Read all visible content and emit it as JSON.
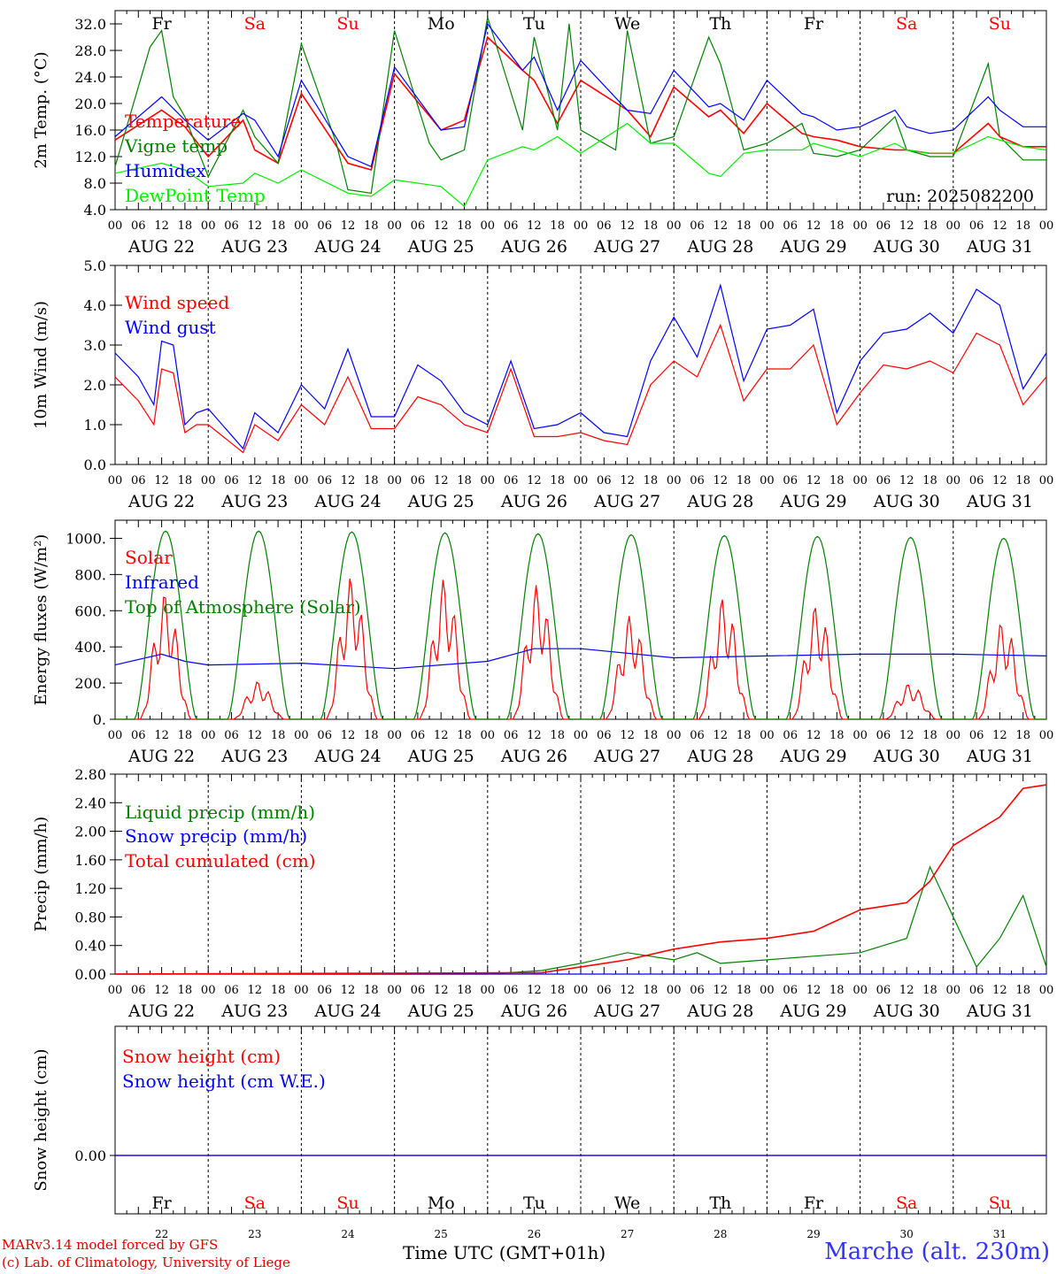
{
  "chart_data": [
    {
      "type": "line",
      "ylabel": "2m Temp. (°C)",
      "ylim": [
        4,
        34
      ],
      "yticks": [
        "32.0",
        "28.0",
        "24.0",
        "20.0",
        "16.0",
        "12.0",
        "8.0",
        "4.0"
      ],
      "ytick_values": [
        32,
        28,
        24,
        20,
        16,
        12,
        8,
        4
      ],
      "run_label": "run: 2025082200",
      "series": [
        {
          "name": "Temperature",
          "color": "#ff0000",
          "x": [
            0,
            12,
            18,
            24,
            33,
            36,
            42,
            48,
            60,
            66,
            72,
            84,
            90,
            96,
            105,
            108,
            114,
            120,
            132,
            138,
            144,
            153,
            156,
            162,
            168,
            177,
            180,
            186,
            192,
            201,
            204,
            210,
            216,
            225,
            228,
            234,
            240
          ],
          "values": [
            14.5,
            19,
            16.5,
            12,
            17.5,
            13,
            11,
            21.5,
            11,
            10,
            24.5,
            16,
            17.5,
            30,
            25,
            23.5,
            17,
            23.5,
            19,
            15,
            22.5,
            18,
            19,
            15.5,
            20,
            15.5,
            15,
            14.5,
            13.5,
            13,
            13,
            12.5,
            12.5,
            17,
            15,
            13.5,
            13.5
          ]
        },
        {
          "name": "Vigne temp",
          "color": "#008000",
          "x": [
            0,
            9,
            12,
            15,
            18,
            21,
            24,
            33,
            36,
            42,
            48,
            57,
            60,
            66,
            72,
            81,
            84,
            90,
            96,
            105,
            108,
            114,
            117,
            120,
            129,
            132,
            138,
            144,
            153,
            156,
            162,
            168,
            177,
            180,
            186,
            192,
            201,
            204,
            210,
            216,
            225,
            228,
            234,
            240
          ],
          "values": [
            10.5,
            28.5,
            31,
            21,
            18,
            13.5,
            9,
            19,
            15,
            11,
            29,
            14,
            7,
            6.5,
            31,
            14,
            11.5,
            13,
            33,
            16,
            30,
            16,
            32,
            16,
            13,
            31,
            14,
            15,
            30,
            26,
            13,
            14,
            17,
            12.5,
            12,
            13,
            18,
            13,
            12,
            12,
            26,
            15,
            11.5,
            11.5
          ]
        },
        {
          "name": "Humidex",
          "color": "#0000ff",
          "x": [
            0,
            12,
            18,
            24,
            33,
            36,
            42,
            48,
            60,
            66,
            72,
            84,
            90,
            96,
            105,
            108,
            114,
            120,
            132,
            138,
            144,
            153,
            156,
            162,
            168,
            177,
            180,
            186,
            192,
            201,
            204,
            210,
            216,
            225,
            228,
            234,
            240
          ],
          "values": [
            15,
            21,
            17.5,
            14.5,
            18.5,
            17.5,
            12,
            23.5,
            12,
            10.5,
            25.5,
            16,
            16.5,
            32,
            25,
            27,
            19,
            26.5,
            19,
            18.5,
            25,
            19.5,
            20,
            17.5,
            23.5,
            18.5,
            18,
            16,
            16.5,
            19,
            16.5,
            15.5,
            16,
            21,
            19,
            16.5,
            16.5
          ]
        },
        {
          "name": "DewPoint Temp",
          "color": "#00ee00",
          "x": [
            0,
            12,
            18,
            24,
            33,
            36,
            42,
            48,
            60,
            66,
            72,
            84,
            90,
            96,
            105,
            108,
            114,
            120,
            132,
            138,
            144,
            153,
            156,
            162,
            168,
            177,
            180,
            186,
            192,
            201,
            204,
            210,
            216,
            225,
            228,
            234,
            240
          ],
          "values": [
            9.5,
            11,
            10,
            7.5,
            8,
            9.5,
            8,
            10,
            6.5,
            6,
            8.5,
            7.5,
            4.5,
            11.5,
            13.5,
            13,
            15,
            12.5,
            17,
            14,
            14,
            9.5,
            9,
            12.5,
            13,
            13,
            14,
            13,
            12,
            14,
            13,
            12.5,
            12.5,
            15,
            14.5,
            13.5,
            13
          ]
        }
      ]
    },
    {
      "type": "line",
      "ylabel": "10m Wind (m/s)",
      "ylim": [
        0,
        5
      ],
      "yticks": [
        "5.0",
        "4.0",
        "3.0",
        "2.0",
        "1.0",
        "0.0"
      ],
      "ytick_values": [
        5,
        4,
        3,
        2,
        1,
        0
      ],
      "series": [
        {
          "name": "Wind speed",
          "color": "#ff0000",
          "x": [
            0,
            6,
            10,
            12,
            15,
            18,
            21,
            24,
            33,
            36,
            42,
            48,
            54,
            60,
            66,
            72,
            78,
            84,
            90,
            96,
            102,
            108,
            114,
            120,
            126,
            132,
            138,
            144,
            150,
            156,
            162,
            168,
            174,
            180,
            186,
            192,
            198,
            204,
            210,
            216,
            222,
            228,
            234,
            240
          ],
          "values": [
            2.2,
            1.6,
            1.0,
            2.4,
            2.3,
            0.8,
            1.0,
            1.0,
            0.3,
            1.0,
            0.6,
            1.5,
            1.0,
            2.2,
            0.9,
            0.9,
            1.7,
            1.5,
            1.0,
            0.8,
            2.4,
            0.7,
            0.7,
            0.8,
            0.6,
            0.5,
            2.0,
            2.6,
            2.2,
            3.5,
            1.6,
            2.4,
            2.4,
            3.0,
            1.0,
            1.8,
            2.5,
            2.4,
            2.6,
            2.3,
            3.3,
            3.0,
            1.5,
            2.2
          ]
        },
        {
          "name": "Wind gust",
          "color": "#0000ff",
          "x": [
            0,
            6,
            10,
            12,
            15,
            18,
            21,
            24,
            33,
            36,
            42,
            48,
            54,
            60,
            66,
            72,
            78,
            84,
            90,
            96,
            102,
            108,
            114,
            120,
            126,
            132,
            138,
            144,
            150,
            156,
            162,
            168,
            174,
            180,
            186,
            192,
            198,
            204,
            210,
            216,
            222,
            228,
            234,
            240
          ],
          "values": [
            2.8,
            2.2,
            1.5,
            3.1,
            3.0,
            1.0,
            1.3,
            1.4,
            0.4,
            1.3,
            0.8,
            2.0,
            1.4,
            2.9,
            1.2,
            1.2,
            2.5,
            2.1,
            1.3,
            1.0,
            2.6,
            0.9,
            1.0,
            1.3,
            0.8,
            0.7,
            2.6,
            3.7,
            2.7,
            4.5,
            2.1,
            3.4,
            3.5,
            3.9,
            1.3,
            2.6,
            3.3,
            3.4,
            3.8,
            3.3,
            4.4,
            4.0,
            1.9,
            2.8
          ]
        }
      ]
    },
    {
      "type": "line",
      "ylabel": "Energy fluxes (W/m²)",
      "ylim": [
        0,
        1100
      ],
      "yticks": [
        "1000.",
        "800.",
        "600.",
        "400.",
        "200.",
        "0."
      ],
      "ytick_values": [
        1000,
        800,
        600,
        400,
        200,
        0
      ],
      "series": [
        {
          "name": "Solar",
          "color": "#ff0000",
          "daily_peaks": [
            700,
            210,
            790,
            780,
            750,
            580,
            680,
            640,
            200,
            550
          ]
        },
        {
          "name": "Infrared",
          "color": "#0000ff",
          "x": [
            0,
            12,
            18,
            24,
            48,
            72,
            96,
            108,
            120,
            144,
            168,
            192,
            216,
            240
          ],
          "values": [
            300,
            360,
            320,
            300,
            310,
            280,
            320,
            390,
            390,
            340,
            350,
            360,
            360,
            350
          ]
        },
        {
          "name": "Top of Atmosphere (Solar)",
          "color": "#008000",
          "daily_peaks": [
            1040,
            1040,
            1035,
            1030,
            1025,
            1020,
            1015,
            1010,
            1005,
            1000
          ]
        }
      ]
    },
    {
      "type": "line",
      "ylabel": "Precip (mm/h)",
      "ylim": [
        0,
        2.8
      ],
      "yticks": [
        "2.80",
        "2.40",
        "2.00",
        "1.60",
        "1.20",
        "0.80",
        "0.40",
        "0.00"
      ],
      "ytick_values": [
        2.8,
        2.4,
        2.0,
        1.6,
        1.2,
        0.8,
        0.4,
        0.0
      ],
      "series": [
        {
          "name": "Liquid precip (mm/h)",
          "color": "#008000",
          "x": [
            0,
            96,
            110,
            120,
            132,
            144,
            150,
            156,
            168,
            180,
            192,
            204,
            210,
            216,
            222,
            228,
            234,
            240
          ],
          "values": [
            0,
            0,
            0.05,
            0.15,
            0.3,
            0.2,
            0.3,
            0.15,
            0.2,
            0.25,
            0.3,
            0.5,
            1.5,
            0.8,
            0.1,
            0.5,
            1.1,
            0.1
          ]
        },
        {
          "name": "Snow precip (mm/h)",
          "color": "#0000ff",
          "x": [
            0,
            240
          ],
          "values": [
            0,
            0
          ]
        },
        {
          "name": "Total cumulated (cm)",
          "color": "#ff0000",
          "x": [
            0,
            110,
            120,
            132,
            144,
            156,
            168,
            180,
            192,
            204,
            210,
            216,
            228,
            234,
            240
          ],
          "values": [
            0,
            0.02,
            0.1,
            0.2,
            0.35,
            0.45,
            0.5,
            0.6,
            0.9,
            1.0,
            1.3,
            1.8,
            2.2,
            2.6,
            2.65
          ]
        }
      ]
    },
    {
      "type": "line",
      "ylabel": "Snow height (cm)",
      "ytick_values": [
        0
      ],
      "yticks": [
        "0.00"
      ],
      "series": [
        {
          "name": "Snow height (cm)",
          "color": "#ff0000",
          "x": [
            0,
            240
          ],
          "values": [
            0,
            0
          ]
        },
        {
          "name": "Snow height (cm W.E.)",
          "color": "#0000ff",
          "x": [
            0,
            240
          ],
          "values": [
            0,
            0
          ]
        }
      ]
    }
  ],
  "days": {
    "weekday_labels": [
      "Fr",
      "Sa",
      "Su",
      "Mo",
      "Tu",
      "We",
      "Th",
      "Fr",
      "Sa",
      "Su"
    ],
    "weekday_colors": [
      "#000000",
      "#ff0000",
      "#ff0000",
      "#000000",
      "#000000",
      "#000000",
      "#000000",
      "#000000",
      "#ff0000",
      "#ff0000"
    ],
    "date_labels": [
      "AUG 22",
      "AUG 23",
      "AUG 24",
      "AUG 25",
      "AUG 26",
      "AUG 27",
      "AUG 28",
      "AUG 29",
      "AUG 30",
      "AUG 31"
    ],
    "day_numbers": [
      "22",
      "23",
      "24",
      "25",
      "26",
      "27",
      "28",
      "29",
      "30",
      "31"
    ],
    "hour_labels": [
      "00",
      "06",
      "12",
      "18"
    ],
    "end_hour_label": "00"
  },
  "footer": {
    "model": "MARv3.14 model forced by GFS",
    "lab": "(c) Lab. of Climatology, University of Liege",
    "xlabel": "Time UTC (GMT+01h)",
    "station": "Marche (alt. 230m)"
  }
}
